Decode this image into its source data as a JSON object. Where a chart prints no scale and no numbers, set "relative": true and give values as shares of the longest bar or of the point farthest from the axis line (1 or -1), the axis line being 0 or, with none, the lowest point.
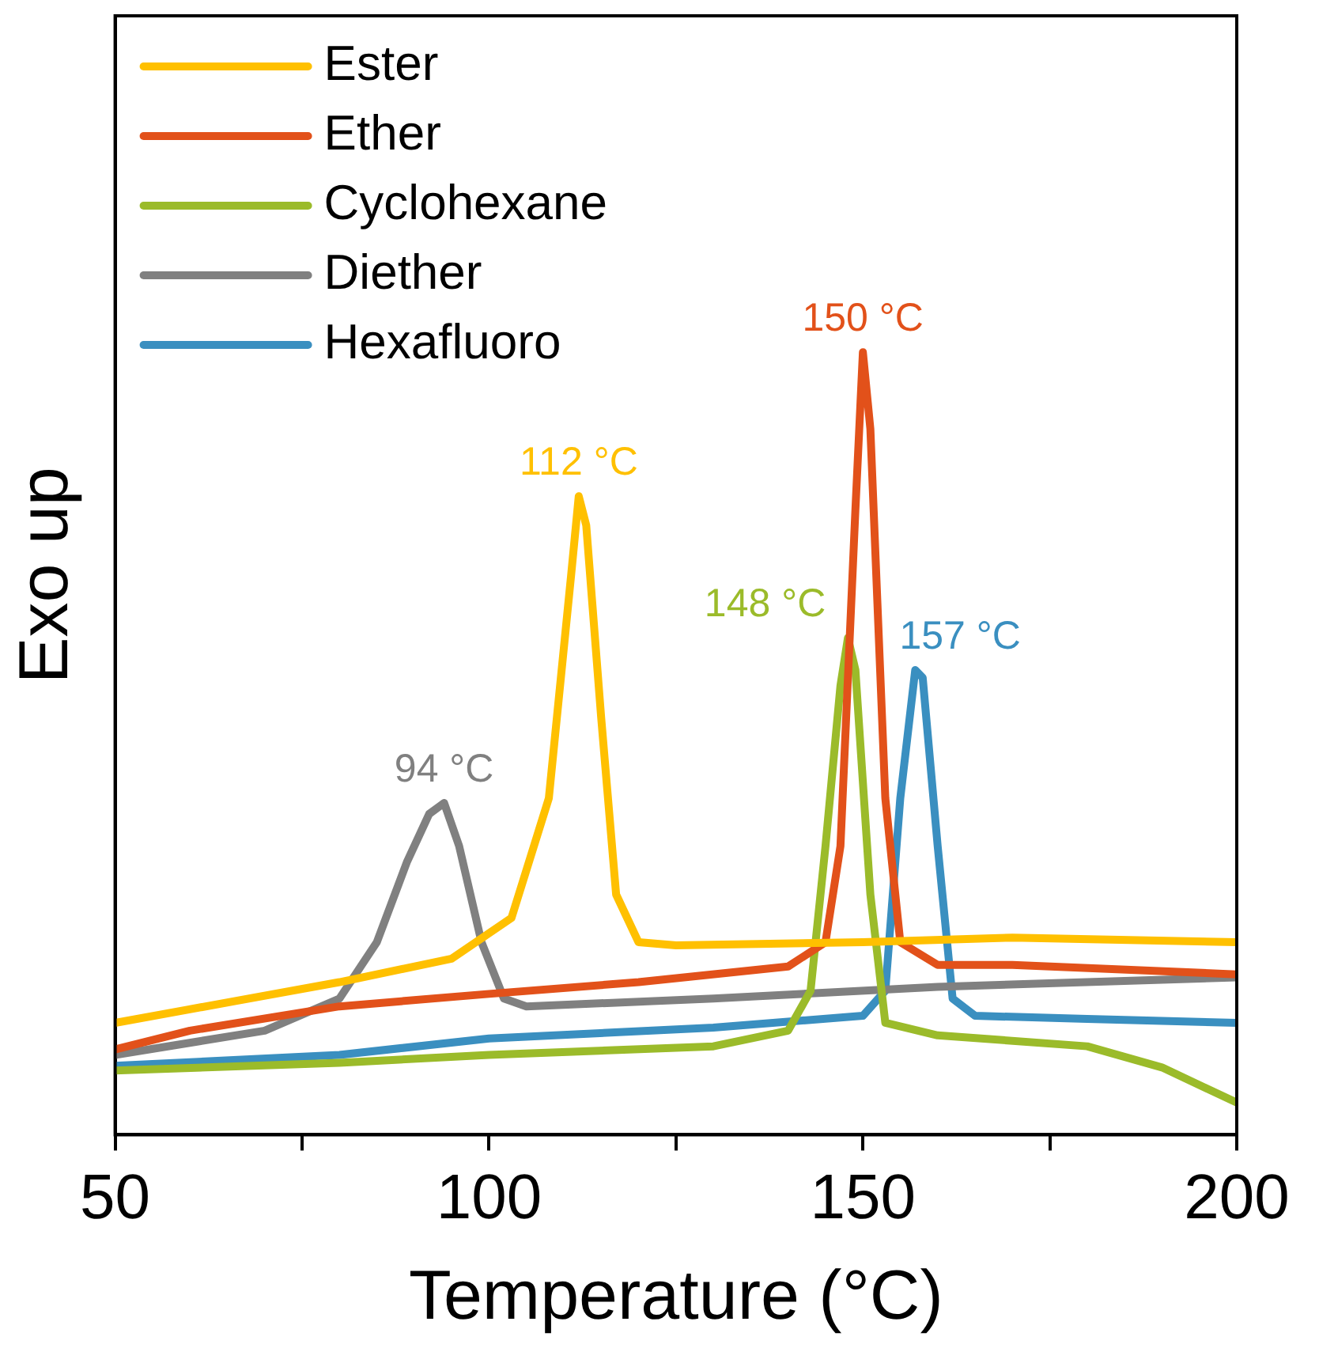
{
  "chart_data": {
    "type": "line",
    "xlabel": "Temperature (°C)",
    "ylabel": "Exo up",
    "relative": true,
    "legend": "top left",
    "tick_labels": "x",
    "grid": false,
    "marker": "none",
    "line_style": "solid",
    "xlim": [
      50,
      200
    ],
    "xticks": [
      50,
      {
        "value": 75,
        "label": null
      },
      100,
      {
        "value": 125,
        "label": null
      },
      150,
      {
        "value": 175,
        "label": null
      },
      200
    ],
    "series": [
      {
        "name": "Ester",
        "color": "#ffc000",
        "x": [
          50,
          80,
          95,
          103,
          108,
          111,
          112,
          113,
          115,
          117,
          120,
          125,
          150,
          170,
          200
        ],
        "values": [
          0.143,
          0.195,
          0.225,
          0.277,
          0.43,
          0.717,
          0.816,
          0.779,
          0.533,
          0.307,
          0.246,
          0.242,
          0.246,
          0.252,
          0.246
        ]
      },
      {
        "name": "Ether",
        "color": "#e2511a",
        "x": [
          50,
          60,
          80,
          100,
          120,
          140,
          145,
          147,
          149,
          150,
          151,
          153,
          155,
          160,
          170,
          200
        ],
        "values": [
          0.109,
          0.133,
          0.164,
          0.18,
          0.195,
          0.215,
          0.246,
          0.369,
          0.799,
          1,
          0.902,
          0.43,
          0.246,
          0.217,
          0.217,
          0.205
        ]
      },
      {
        "name": "Cyclohexane",
        "color": "#9bbb2a",
        "x": [
          50,
          80,
          100,
          130,
          140,
          143,
          145,
          147,
          148,
          149,
          151,
          153,
          160,
          180,
          190,
          200
        ],
        "values": [
          0.082,
          0.092,
          0.102,
          0.113,
          0.133,
          0.184,
          0.369,
          0.574,
          0.635,
          0.594,
          0.307,
          0.143,
          0.127,
          0.113,
          0.086,
          0.041
        ]
      },
      {
        "name": "Diether",
        "color": "#808080",
        "x": [
          50,
          70,
          80,
          85,
          89,
          92,
          94,
          96,
          99,
          102,
          105,
          130,
          160,
          200
        ],
        "values": [
          0.102,
          0.133,
          0.174,
          0.246,
          0.348,
          0.41,
          0.424,
          0.369,
          0.246,
          0.174,
          0.164,
          0.174,
          0.189,
          0.201
        ]
      },
      {
        "name": "Hexafluoro",
        "color": "#3a8fc0",
        "x": [
          50,
          80,
          100,
          130,
          150,
          153,
          155,
          157,
          158,
          160,
          162,
          165,
          180,
          200
        ],
        "values": [
          0.088,
          0.102,
          0.123,
          0.137,
          0.152,
          0.184,
          0.43,
          0.594,
          0.584,
          0.369,
          0.174,
          0.152,
          0.148,
          0.143
        ]
      }
    ],
    "annotations": [
      {
        "text": "112 °C",
        "x": 112,
        "y": 0.816
      },
      {
        "text": "150 °C",
        "x": 150,
        "y": 1
      },
      {
        "text": "148 °C",
        "x": 148,
        "y": 0.635
      },
      {
        "text": "94 °C",
        "x": 94,
        "y": 0.424
      },
      {
        "text": "157 °C",
        "x": 157,
        "y": 0.594
      }
    ]
  }
}
